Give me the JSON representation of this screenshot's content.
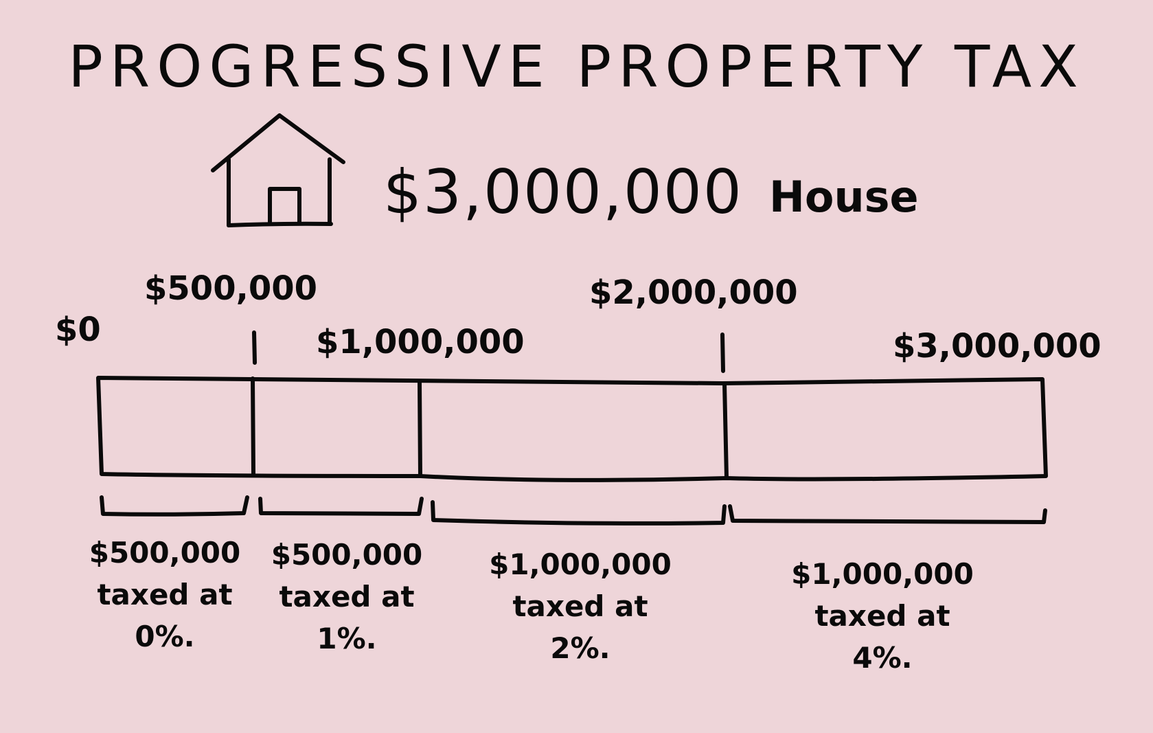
{
  "title": "PROGRESSIVE PROPERTY TAX",
  "house": {
    "icon": "house-icon",
    "price": "$3,000,000",
    "label": "House"
  },
  "scale_ticks": {
    "zero": "$0",
    "t500k": "$500,000",
    "t1m": "$1,000,000",
    "t2m": "$2,000,000",
    "t3m": "$3,000,000"
  },
  "brackets": [
    {
      "amount": "$500,000",
      "taxed": "taxed at",
      "rate": "0%."
    },
    {
      "amount": "$500,000",
      "taxed": "taxed at",
      "rate": "1%."
    },
    {
      "amount": "$1,000,000",
      "taxed": "taxed at",
      "rate": "2%."
    },
    {
      "amount": "$1,000,000",
      "taxed": "taxed at",
      "rate": "4%."
    }
  ],
  "colors": {
    "background": "#eed5d9",
    "ink": "#0a0a0a"
  }
}
